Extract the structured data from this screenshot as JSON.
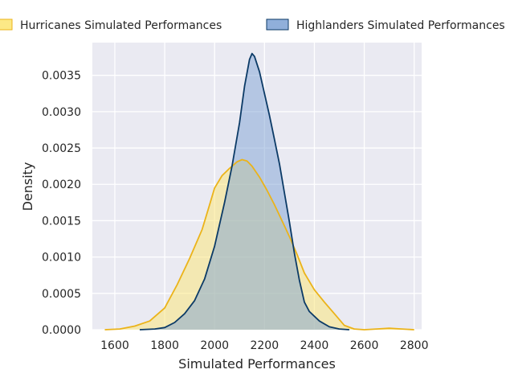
{
  "chart_data": {
    "type": "area",
    "title": "",
    "xlabel": "Simulated Performances",
    "ylabel": "Density",
    "xlim": [
      1510,
      2830
    ],
    "ylim": [
      0,
      0.00395
    ],
    "xticks": [
      1600,
      1800,
      2000,
      2200,
      2400,
      2600,
      2800
    ],
    "xtick_labels": [
      "1600",
      "1800",
      "2000",
      "2200",
      "2400",
      "2600",
      "2800"
    ],
    "yticks": [
      0,
      0.0005,
      0.001,
      0.0015,
      0.002,
      0.0025,
      0.003,
      0.0035
    ],
    "ytick_labels": [
      "0.0000",
      "0.0005",
      "0.0010",
      "0.0015",
      "0.0020",
      "0.0025",
      "0.0030",
      "0.0035"
    ],
    "grid": true,
    "legend_position": "top",
    "background": "#eaeaf2",
    "series": [
      {
        "name": "Hurricanes Simulated Performances",
        "fill": "#fce571",
        "edge": "#ebb319",
        "x": [
          1560,
          1620,
          1680,
          1740,
          1800,
          1850,
          1900,
          1950,
          1980,
          2000,
          2030,
          2060,
          2090,
          2110,
          2130,
          2150,
          2180,
          2210,
          2240,
          2270,
          2300,
          2330,
          2360,
          2400,
          2440,
          2480,
          2520,
          2560,
          2600,
          2650,
          2700,
          2750,
          2800
        ],
        "y": [
          0,
          1e-05,
          5e-05,
          0.00012,
          0.0003,
          0.00062,
          0.00098,
          0.00138,
          0.00172,
          0.00195,
          0.00212,
          0.00222,
          0.00231,
          0.00234,
          0.00232,
          0.00225,
          0.0021,
          0.00192,
          0.00172,
          0.0015,
          0.00128,
          0.00104,
          0.00078,
          0.00055,
          0.00038,
          0.00022,
          6e-05,
          1e-05,
          0,
          1e-05,
          2e-05,
          1e-05,
          0
        ]
      },
      {
        "name": "Highlanders Simulated Performances",
        "fill": "#7da1d4",
        "edge": "#0b3a66",
        "x": [
          1700,
          1760,
          1800,
          1840,
          1880,
          1920,
          1960,
          2000,
          2040,
          2070,
          2100,
          2120,
          2140,
          2150,
          2160,
          2180,
          2200,
          2220,
          2240,
          2260,
          2280,
          2300,
          2320,
          2340,
          2360,
          2380,
          2420,
          2460,
          2500,
          2540
        ],
        "y": [
          0,
          1e-05,
          3e-05,
          0.0001,
          0.00022,
          0.0004,
          0.0007,
          0.00115,
          0.00175,
          0.00225,
          0.00285,
          0.00335,
          0.00372,
          0.0038,
          0.00376,
          0.00355,
          0.00325,
          0.00295,
          0.00262,
          0.00228,
          0.00188,
          0.00148,
          0.00105,
          0.00068,
          0.00038,
          0.00025,
          0.00012,
          4e-05,
          1e-05,
          0
        ]
      }
    ]
  }
}
